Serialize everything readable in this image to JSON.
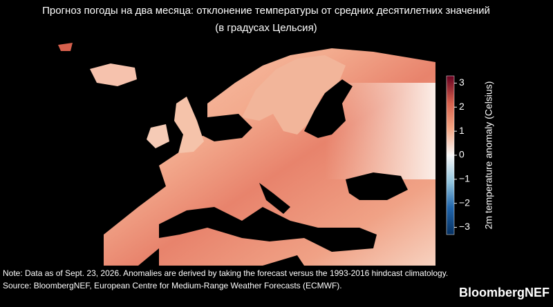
{
  "title": [
    "Прогноз погоды на два месяца: отклонение температуры от средних десятилетних значений",
    "(в градусах Цельсия)"
  ],
  "colorbar": {
    "label": "2m temperature anomaly (Celsius)",
    "lim": [
      -3.3,
      3.3
    ],
    "ticks": [
      {
        "value": 3,
        "label": "3"
      },
      {
        "value": 2,
        "label": "2"
      },
      {
        "value": 1,
        "label": "1"
      },
      {
        "value": 0,
        "label": "0"
      },
      {
        "value": -1,
        "label": "−1"
      },
      {
        "value": -2,
        "label": "−2"
      },
      {
        "value": -3,
        "label": "−3"
      }
    ]
  },
  "notes": [
    "Note: Data as of Sept. 23, 2026. Anomalies are derived by taking the forecast versus the 1993-2016 hindcast climatology.",
    "Source: BloombergNEF, European Centre for Medium-Range Weather Forecasts (ECMWF)."
  ],
  "brand": "BloombergNEF"
}
